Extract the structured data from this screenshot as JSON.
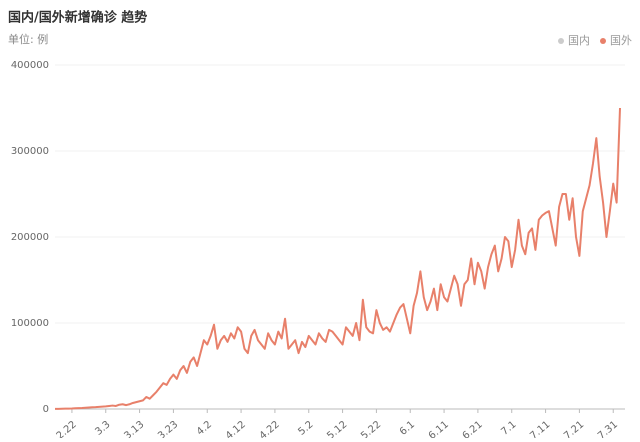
{
  "chart_data": {
    "type": "line",
    "title": "国内/国外新增确诊 趋势",
    "subtitle": "单位: 例",
    "categories": [
      null,
      null,
      null,
      null,
      null,
      "2.22",
      null,
      null,
      null,
      null,
      null,
      null,
      null,
      null,
      null,
      "3.3",
      null,
      null,
      null,
      null,
      null,
      null,
      null,
      null,
      null,
      "3.13",
      null,
      null,
      null,
      null,
      null,
      null,
      null,
      null,
      null,
      "3.23",
      null,
      null,
      null,
      null,
      null,
      null,
      null,
      null,
      null,
      "4.2",
      null,
      null,
      null,
      null,
      null,
      null,
      null,
      null,
      null,
      "4.12",
      null,
      null,
      null,
      null,
      null,
      null,
      null,
      null,
      null,
      "4.22",
      null,
      null,
      null,
      null,
      null,
      null,
      null,
      null,
      null,
      "5.2",
      null,
      null,
      null,
      null,
      null,
      null,
      null,
      null,
      null,
      "5.12",
      null,
      null,
      null,
      null,
      null,
      null,
      null,
      null,
      null,
      "5.22",
      null,
      null,
      null,
      null,
      null,
      null,
      null,
      null,
      null,
      "6.1",
      null,
      null,
      null,
      null,
      null,
      null,
      null,
      null,
      null,
      "6.11",
      null,
      null,
      null,
      null,
      null,
      null,
      null,
      null,
      null,
      "6.21",
      null,
      null,
      null,
      null,
      null,
      null,
      null,
      null,
      null,
      "7.1",
      null,
      null,
      null,
      null,
      null,
      null,
      null,
      null,
      null,
      "7.11",
      null,
      null,
      null,
      null,
      null,
      null,
      null,
      null,
      null,
      "7.21",
      null,
      null,
      null,
      null,
      null,
      null,
      null,
      null,
      null,
      "7.31",
      null,
      null
    ],
    "series": [
      {
        "name": "国内",
        "color": "#cccccc",
        "visible": false
      },
      {
        "name": "国外",
        "color": "#e8806a",
        "visible": true,
        "values": [
          100,
          200,
          300,
          400,
          500,
          600,
          800,
          1000,
          1200,
          1500,
          1800,
          2000,
          2200,
          2500,
          2800,
          3000,
          3500,
          4000,
          3500,
          5000,
          5500,
          4500,
          5500,
          7000,
          8000,
          9000,
          10000,
          14000,
          12000,
          16000,
          20000,
          25000,
          30000,
          28000,
          35000,
          40000,
          35000,
          45000,
          50000,
          42000,
          55000,
          60000,
          50000,
          65000,
          80000,
          75000,
          85000,
          98000,
          70000,
          80000,
          85000,
          78000,
          88000,
          82000,
          95000,
          90000,
          70000,
          65000,
          85000,
          92000,
          80000,
          75000,
          70000,
          88000,
          80000,
          75000,
          90000,
          82000,
          105000,
          70000,
          75000,
          80000,
          65000,
          78000,
          72000,
          85000,
          80000,
          75000,
          88000,
          82000,
          78000,
          92000,
          90000,
          85000,
          80000,
          75000,
          95000,
          90000,
          85000,
          100000,
          80000,
          127000,
          95000,
          90000,
          88000,
          115000,
          100000,
          92000,
          95000,
          90000,
          100000,
          110000,
          118000,
          122000,
          105000,
          88000,
          120000,
          135000,
          160000,
          130000,
          115000,
          125000,
          140000,
          115000,
          145000,
          130000,
          125000,
          140000,
          155000,
          145000,
          120000,
          145000,
          150000,
          175000,
          145000,
          170000,
          160000,
          140000,
          165000,
          180000,
          190000,
          160000,
          175000,
          200000,
          195000,
          165000,
          185000,
          220000,
          190000,
          180000,
          205000,
          210000,
          185000,
          220000,
          225000,
          228000,
          230000,
          210000,
          190000,
          235000,
          250000,
          250000,
          220000,
          245000,
          200000,
          178000,
          230000,
          245000,
          260000,
          285000,
          315000,
          270000,
          240000,
          200000,
          230000,
          262000,
          240000,
          350000
        ]
      }
    ],
    "ylim": [
      0,
      400000
    ],
    "yticks": [
      0,
      100000,
      200000,
      300000,
      400000
    ],
    "grid": true,
    "legend": "top-right"
  }
}
